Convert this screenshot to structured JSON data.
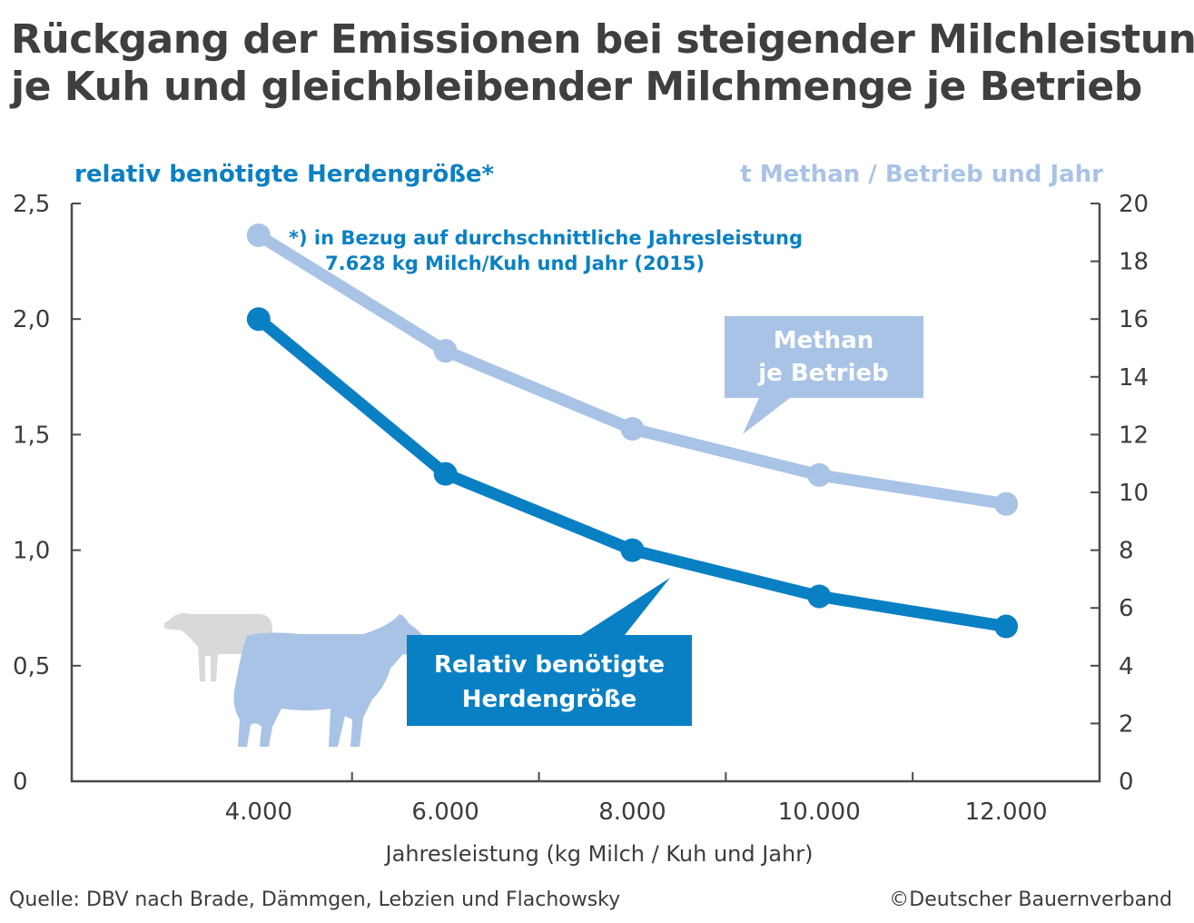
{
  "chart_data": {
    "type": "line",
    "title": [
      "Rückgang der Emissionen bei steigender Milchleistung",
      "je Kuh und gleichbleibender Milchmenge je Betrieb"
    ],
    "xlabel": "Jahresleistung (kg Milch / Kuh und Jahr)",
    "ylabel_left": "relativ benötigte Herdengröße*",
    "ylabel_right": "t Methan / Betrieb und Jahr",
    "x": [
      4000,
      6000,
      8000,
      10000,
      12000
    ],
    "x_tick_labels": [
      "4.000",
      "6.000",
      "8.000",
      "10.000",
      "12.000"
    ],
    "xlim": [
      2000,
      13000
    ],
    "ylim_left": [
      0,
      2.5
    ],
    "ylim_right": [
      0,
      20
    ],
    "y_left_ticks": [
      "0",
      "0,5",
      "1,0",
      "1,5",
      "2,0",
      "2,5"
    ],
    "y_right_ticks": [
      "0",
      "2",
      "4",
      "6",
      "8",
      "10",
      "12",
      "14",
      "16",
      "18",
      "20"
    ],
    "series": [
      {
        "name": "Methan je Betrieb",
        "axis": "right",
        "color": "#a9c3e6",
        "values": [
          18.9,
          14.9,
          12.2,
          10.6,
          9.6
        ]
      },
      {
        "name": "Relativ benötigte Herdengröße",
        "axis": "left",
        "color": "#0a80c4",
        "values": [
          2.0,
          1.33,
          1.0,
          0.8,
          0.67
        ]
      }
    ],
    "callouts": {
      "methan": [
        "Methan",
        "je Betrieb"
      ],
      "herde": [
        "Relativ benötigte",
        "Herdengröße"
      ]
    },
    "footnote": [
      "*) in Bezug auf durchschnittliche Jahresleistung",
      "7.628 kg Milch/Kuh und Jahr (2015)"
    ],
    "grid": false
  },
  "source": "Quelle: DBV nach Brade, Dämmgen, Lebzien und Flachowsky",
  "copyright": "©Deutscher Bauernverband",
  "icons": [
    "cow-small-icon",
    "cow-large-icon"
  ]
}
